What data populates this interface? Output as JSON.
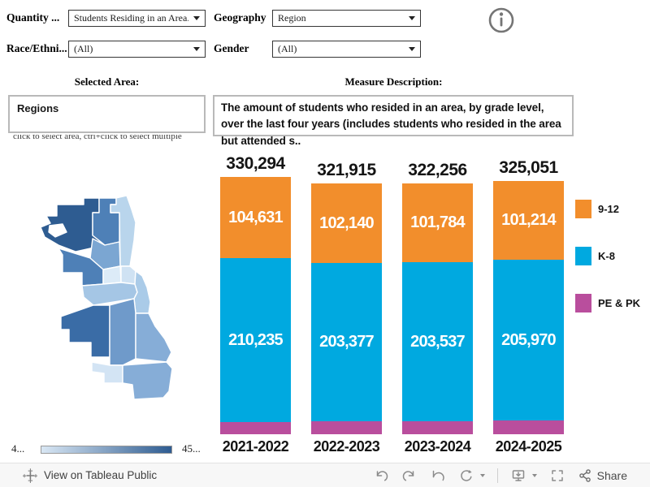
{
  "filters": {
    "quantity_label": "Quantity ...",
    "quantity_value": "Students Residing in an Area...",
    "geography_label": "Geography",
    "geography_value": "Region",
    "race_label": "Race/Ethni...",
    "race_value": "(All)",
    "gender_label": "Gender",
    "gender_value": "(All)"
  },
  "selected_area": {
    "heading": "Selected Area:",
    "value": "Regions",
    "hint": "click to select area, ctrl+click to select multiple"
  },
  "measure_description": {
    "heading": "Measure Description:",
    "text": "The amount of students who resided in an area, by grade level, over the last four years (includes students who resided in the area but attended s.."
  },
  "map_legend": {
    "min_label": "4...",
    "max_label": "45...",
    "gradient_start": "#d9e7f4",
    "gradient_end": "#2e5c91"
  },
  "chart_data": {
    "type": "bar",
    "stacked": true,
    "legend_position": "right",
    "categories": [
      "2021-2022",
      "2022-2023",
      "2023-2024",
      "2024-2025"
    ],
    "totals": [
      330294,
      321915,
      322256,
      325051
    ],
    "totals_display": [
      "330,294",
      "321,915",
      "322,256",
      "325,051"
    ],
    "series": [
      {
        "name": "9-12",
        "color": "#F28E2C",
        "values": [
          104631,
          102140,
          101784,
          101214
        ],
        "labels": [
          "104,631",
          "102,140",
          "101,784",
          "101,214"
        ]
      },
      {
        "name": "K-8",
        "color": "#00A9E0",
        "values": [
          210235,
          203377,
          203537,
          205970
        ],
        "labels": [
          "210,235",
          "203,377",
          "203,537",
          "205,970"
        ]
      },
      {
        "name": "PE & PK",
        "color": "#B94E9D",
        "values": [
          15428,
          16398,
          16935,
          17867
        ],
        "labels": [
          "",
          "",
          "",
          ""
        ]
      }
    ]
  },
  "footer": {
    "view_text": "View on Tableau Public",
    "share_label": "Share"
  }
}
